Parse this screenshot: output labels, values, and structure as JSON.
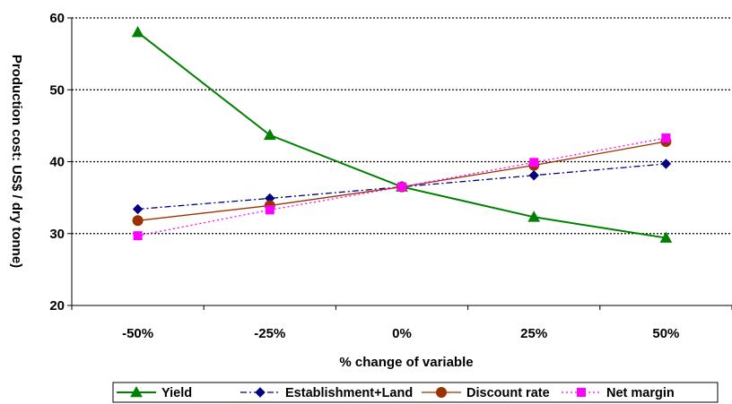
{
  "chart_data": {
    "type": "line",
    "categories": [
      "-50%",
      "-25%",
      "0%",
      "25%",
      "50%"
    ],
    "series": [
      {
        "name": "Yield",
        "values": [
          58.0,
          43.7,
          36.5,
          32.3,
          29.4
        ],
        "color": "#008000",
        "marker": "triangle",
        "dash": "solid"
      },
      {
        "name": "Establishment+Land",
        "values": [
          33.4,
          34.9,
          36.5,
          38.1,
          39.7
        ],
        "color": "#000080",
        "marker": "diamond",
        "dash": "dashdot"
      },
      {
        "name": "Discount rate",
        "values": [
          31.8,
          33.9,
          36.5,
          39.5,
          42.8
        ],
        "color": "#993300",
        "marker": "circle",
        "dash": "solid"
      },
      {
        "name": "Net margin",
        "values": [
          29.7,
          33.3,
          36.5,
          39.9,
          43.3
        ],
        "color": "#FF00FF",
        "marker": "square",
        "dash": "dotted"
      }
    ],
    "xlabel": "% change of variable",
    "ylabel": "Production cost: US$ / dry tonne)",
    "ylim": [
      20,
      60
    ],
    "yticks": [
      20,
      30,
      40,
      50,
      60
    ],
    "grid": "horizontal dotted",
    "legend": "bottom"
  }
}
